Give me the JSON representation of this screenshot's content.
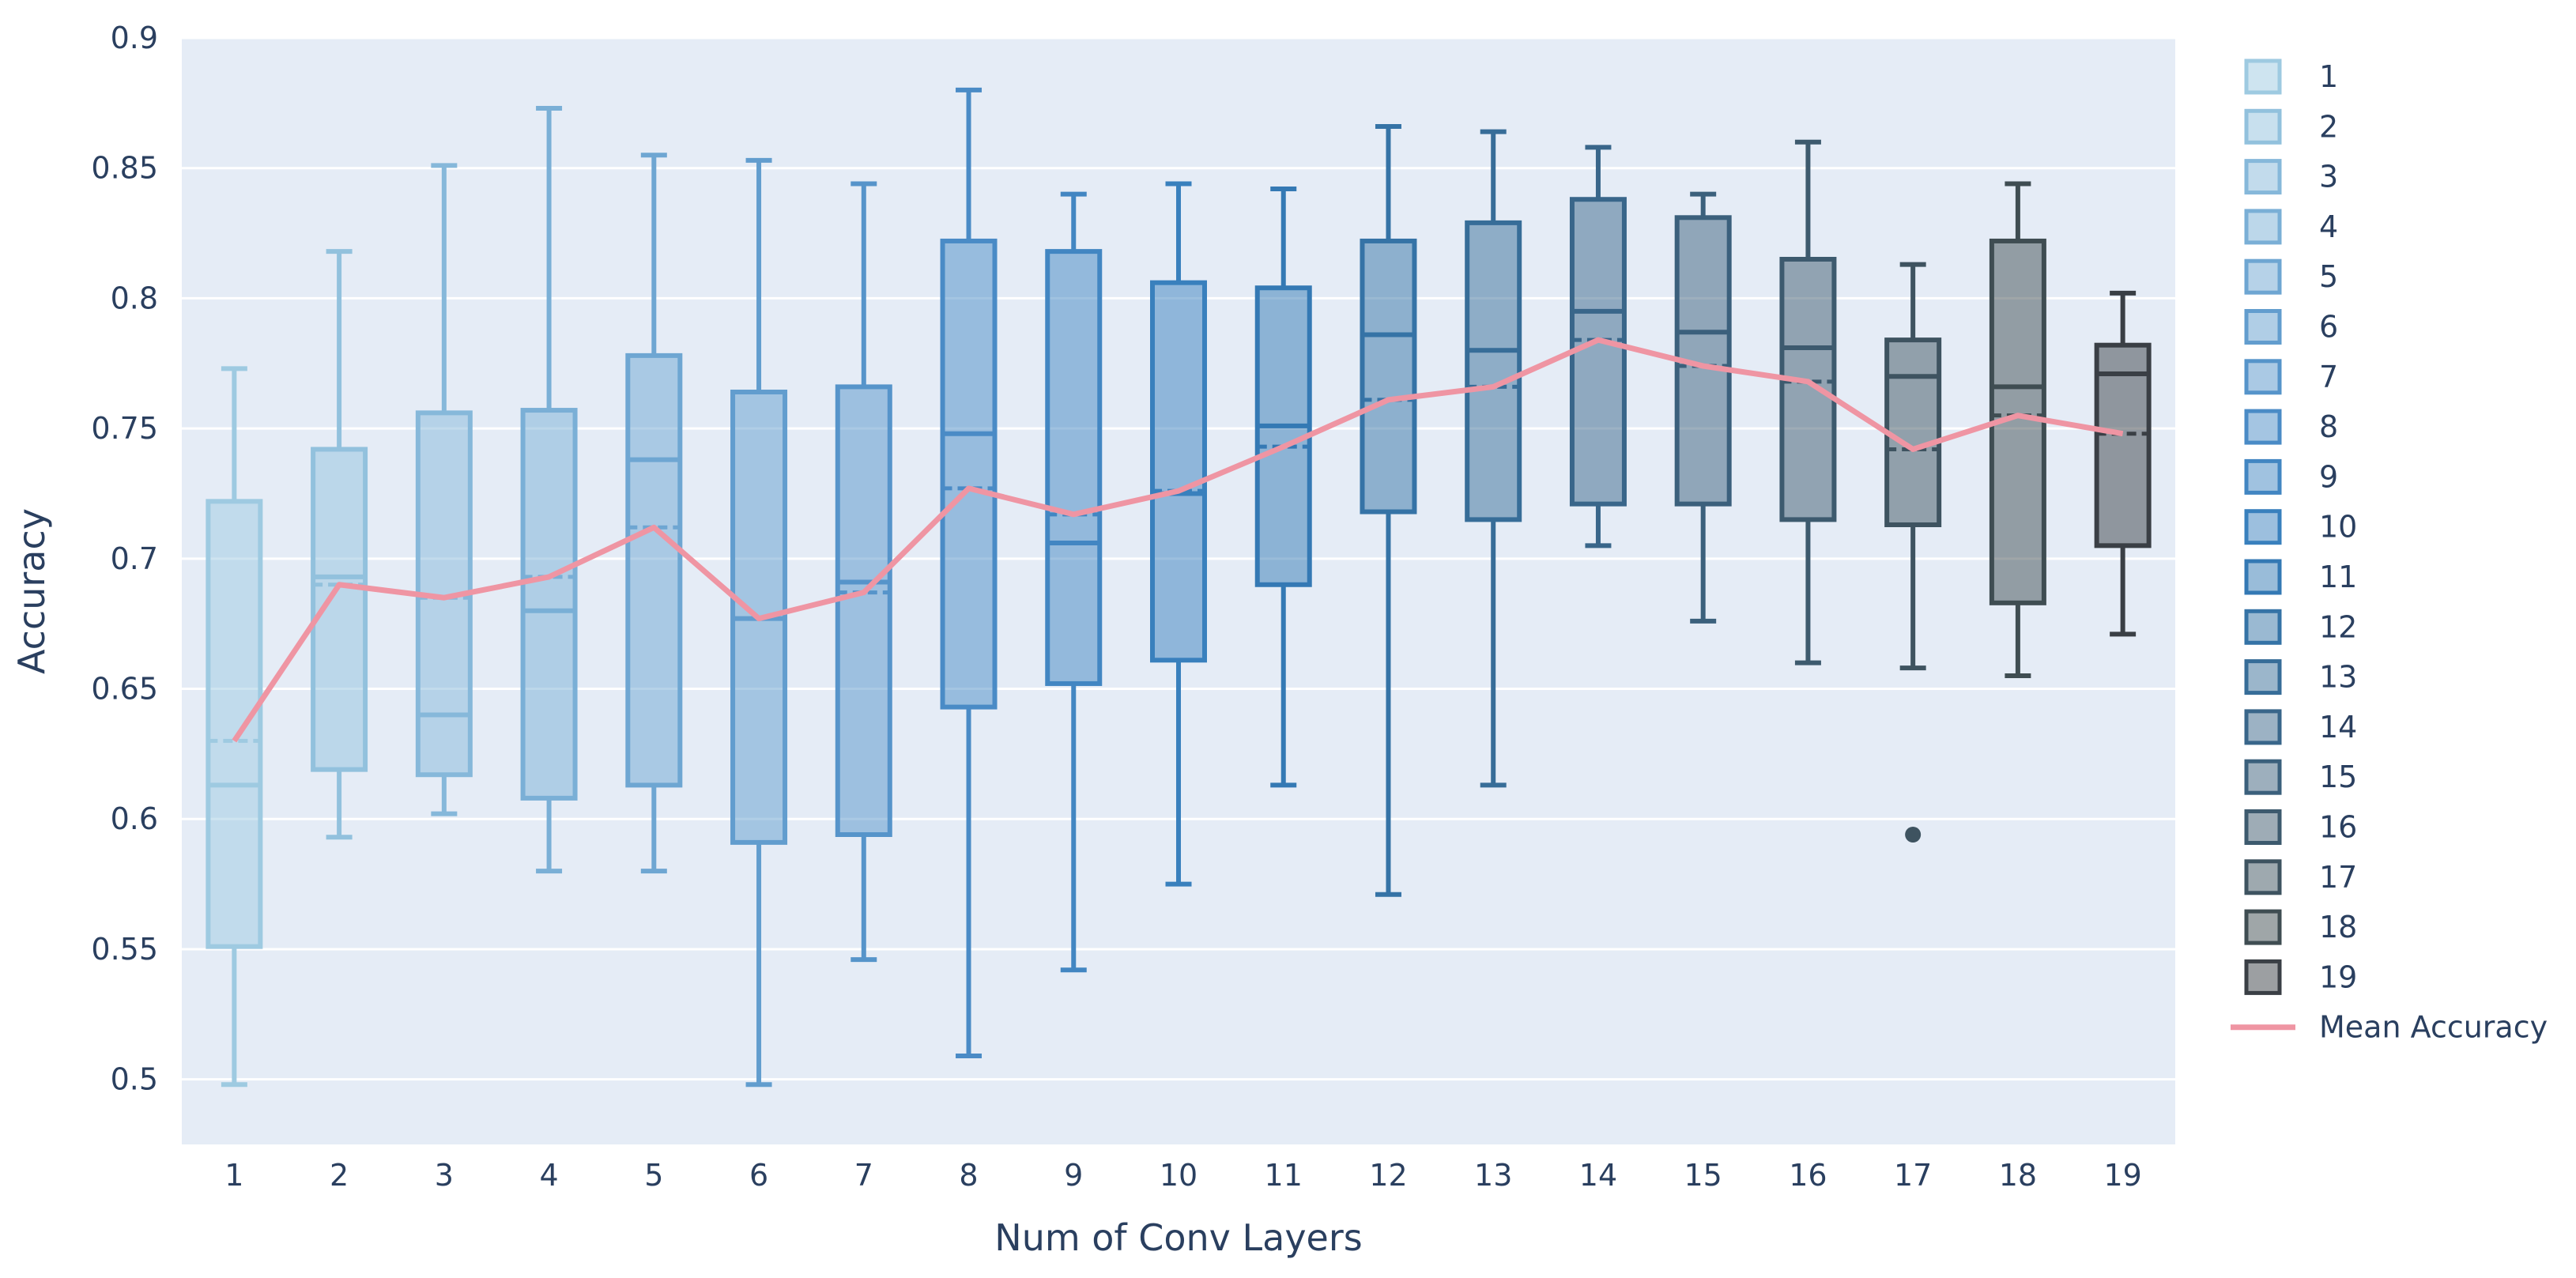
{
  "chart_data": {
    "type": "box",
    "title": "",
    "xlabel": "Num of Conv Layers",
    "ylabel": "Accuracy",
    "ylim": [
      0.475,
      0.9
    ],
    "yticks": [
      0.5,
      0.55,
      0.6,
      0.65,
      0.7,
      0.75,
      0.8,
      0.85,
      0.9
    ],
    "ytick_labels": [
      "0.5",
      "0.55",
      "0.6",
      "0.65",
      "0.7",
      "0.75",
      "0.8",
      "0.85",
      "0.9"
    ],
    "categories": [
      "1",
      "2",
      "3",
      "4",
      "5",
      "6",
      "7",
      "8",
      "9",
      "10",
      "11",
      "12",
      "13",
      "14",
      "15",
      "16",
      "17",
      "18",
      "19"
    ],
    "series": [
      {
        "name": "1",
        "min": 0.498,
        "q1": 0.551,
        "median": 0.613,
        "mean": 0.63,
        "q3": 0.722,
        "max": 0.773,
        "outliers": []
      },
      {
        "name": "2",
        "min": 0.593,
        "q1": 0.619,
        "median": 0.693,
        "mean": 0.69,
        "q3": 0.742,
        "max": 0.818,
        "outliers": []
      },
      {
        "name": "3",
        "min": 0.602,
        "q1": 0.617,
        "median": 0.64,
        "mean": 0.685,
        "q3": 0.756,
        "max": 0.851,
        "outliers": []
      },
      {
        "name": "4",
        "min": 0.58,
        "q1": 0.608,
        "median": 0.68,
        "mean": 0.693,
        "q3": 0.757,
        "max": 0.873,
        "outliers": []
      },
      {
        "name": "5",
        "min": 0.58,
        "q1": 0.613,
        "median": 0.738,
        "mean": 0.712,
        "q3": 0.778,
        "max": 0.855,
        "outliers": []
      },
      {
        "name": "6",
        "min": 0.498,
        "q1": 0.591,
        "median": 0.677,
        "mean": 0.677,
        "q3": 0.764,
        "max": 0.853,
        "outliers": []
      },
      {
        "name": "7",
        "min": 0.546,
        "q1": 0.594,
        "median": 0.691,
        "mean": 0.687,
        "q3": 0.766,
        "max": 0.844,
        "outliers": []
      },
      {
        "name": "8",
        "min": 0.509,
        "q1": 0.643,
        "median": 0.748,
        "mean": 0.727,
        "q3": 0.822,
        "max": 0.88,
        "outliers": []
      },
      {
        "name": "9",
        "min": 0.542,
        "q1": 0.652,
        "median": 0.706,
        "mean": 0.717,
        "q3": 0.818,
        "max": 0.84,
        "outliers": []
      },
      {
        "name": "10",
        "min": 0.575,
        "q1": 0.661,
        "median": 0.725,
        "mean": 0.726,
        "q3": 0.806,
        "max": 0.844,
        "outliers": []
      },
      {
        "name": "11",
        "min": 0.613,
        "q1": 0.69,
        "median": 0.751,
        "mean": 0.743,
        "q3": 0.804,
        "max": 0.842,
        "outliers": []
      },
      {
        "name": "12",
        "min": 0.571,
        "q1": 0.718,
        "median": 0.786,
        "mean": 0.761,
        "q3": 0.822,
        "max": 0.866,
        "outliers": []
      },
      {
        "name": "13",
        "min": 0.613,
        "q1": 0.715,
        "median": 0.78,
        "mean": 0.766,
        "q3": 0.829,
        "max": 0.864,
        "outliers": []
      },
      {
        "name": "14",
        "min": 0.705,
        "q1": 0.721,
        "median": 0.795,
        "mean": 0.784,
        "q3": 0.838,
        "max": 0.858,
        "outliers": []
      },
      {
        "name": "15",
        "min": 0.676,
        "q1": 0.721,
        "median": 0.787,
        "mean": 0.774,
        "q3": 0.831,
        "max": 0.84,
        "outliers": []
      },
      {
        "name": "16",
        "min": 0.66,
        "q1": 0.715,
        "median": 0.781,
        "mean": 0.768,
        "q3": 0.815,
        "max": 0.86,
        "outliers": []
      },
      {
        "name": "17",
        "min": 0.658,
        "q1": 0.713,
        "median": 0.77,
        "mean": 0.742,
        "q3": 0.784,
        "max": 0.813,
        "outliers": [
          0.594
        ]
      },
      {
        "name": "18",
        "min": 0.655,
        "q1": 0.683,
        "median": 0.766,
        "mean": 0.755,
        "q3": 0.822,
        "max": 0.844,
        "outliers": []
      },
      {
        "name": "19",
        "min": 0.671,
        "q1": 0.705,
        "median": 0.771,
        "mean": 0.748,
        "q3": 0.782,
        "max": 0.802,
        "outliers": []
      }
    ],
    "box_colors": [
      "#9ecae1",
      "#92c1dd",
      "#86b8da",
      "#7aafd6",
      "#6ea6d2",
      "#629dce",
      "#5694ca",
      "#4a8bc6",
      "#4286c2",
      "#3980bd",
      "#3479b4",
      "#3573a6",
      "#376d98",
      "#39668a",
      "#3b607c",
      "#3d5a6e",
      "#3e5360",
      "#3f4d52",
      "#3a3f45"
    ],
    "mean_line": {
      "name": "Mean Accuracy",
      "color": "#ef95a3"
    },
    "grid": true,
    "legend_position": "right",
    "plot_background": "#e5ecf6"
  }
}
